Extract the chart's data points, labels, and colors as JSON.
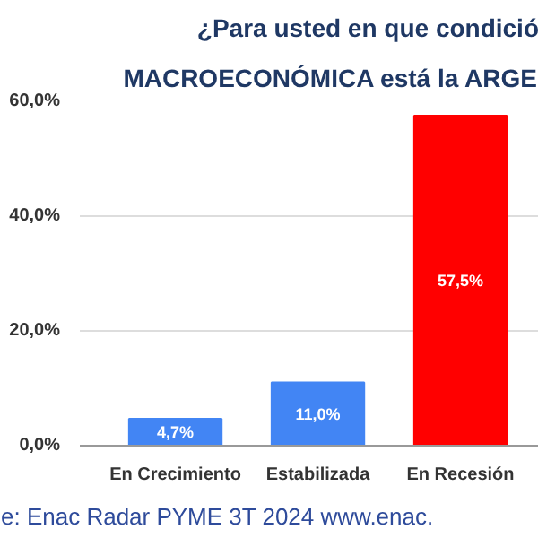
{
  "chart_data": {
    "type": "bar",
    "title": "¿Para usted en que condició",
    "subtitle": "MACROECONÓMICA está la ARGE",
    "categories": [
      "En Crecimiento",
      "Estabilizada",
      "En Recesión"
    ],
    "values": [
      4.7,
      11.0,
      57.5
    ],
    "colors": [
      "#4285f4",
      "#4285f4",
      "#ff0000"
    ],
    "value_labels": [
      "4,7%",
      "11,0%",
      "57,5%"
    ],
    "ylim": [
      0,
      60
    ],
    "yticks": [
      {
        "value": 0,
        "label": "0,0%"
      },
      {
        "value": 20,
        "label": "20,0%"
      },
      {
        "value": 40,
        "label": "40,0%"
      },
      {
        "value": 60,
        "label": "60,0%"
      }
    ],
    "grid": "y",
    "annotations": [
      "e: Enac Radar PYME 3T 2024  www.enac."
    ]
  }
}
